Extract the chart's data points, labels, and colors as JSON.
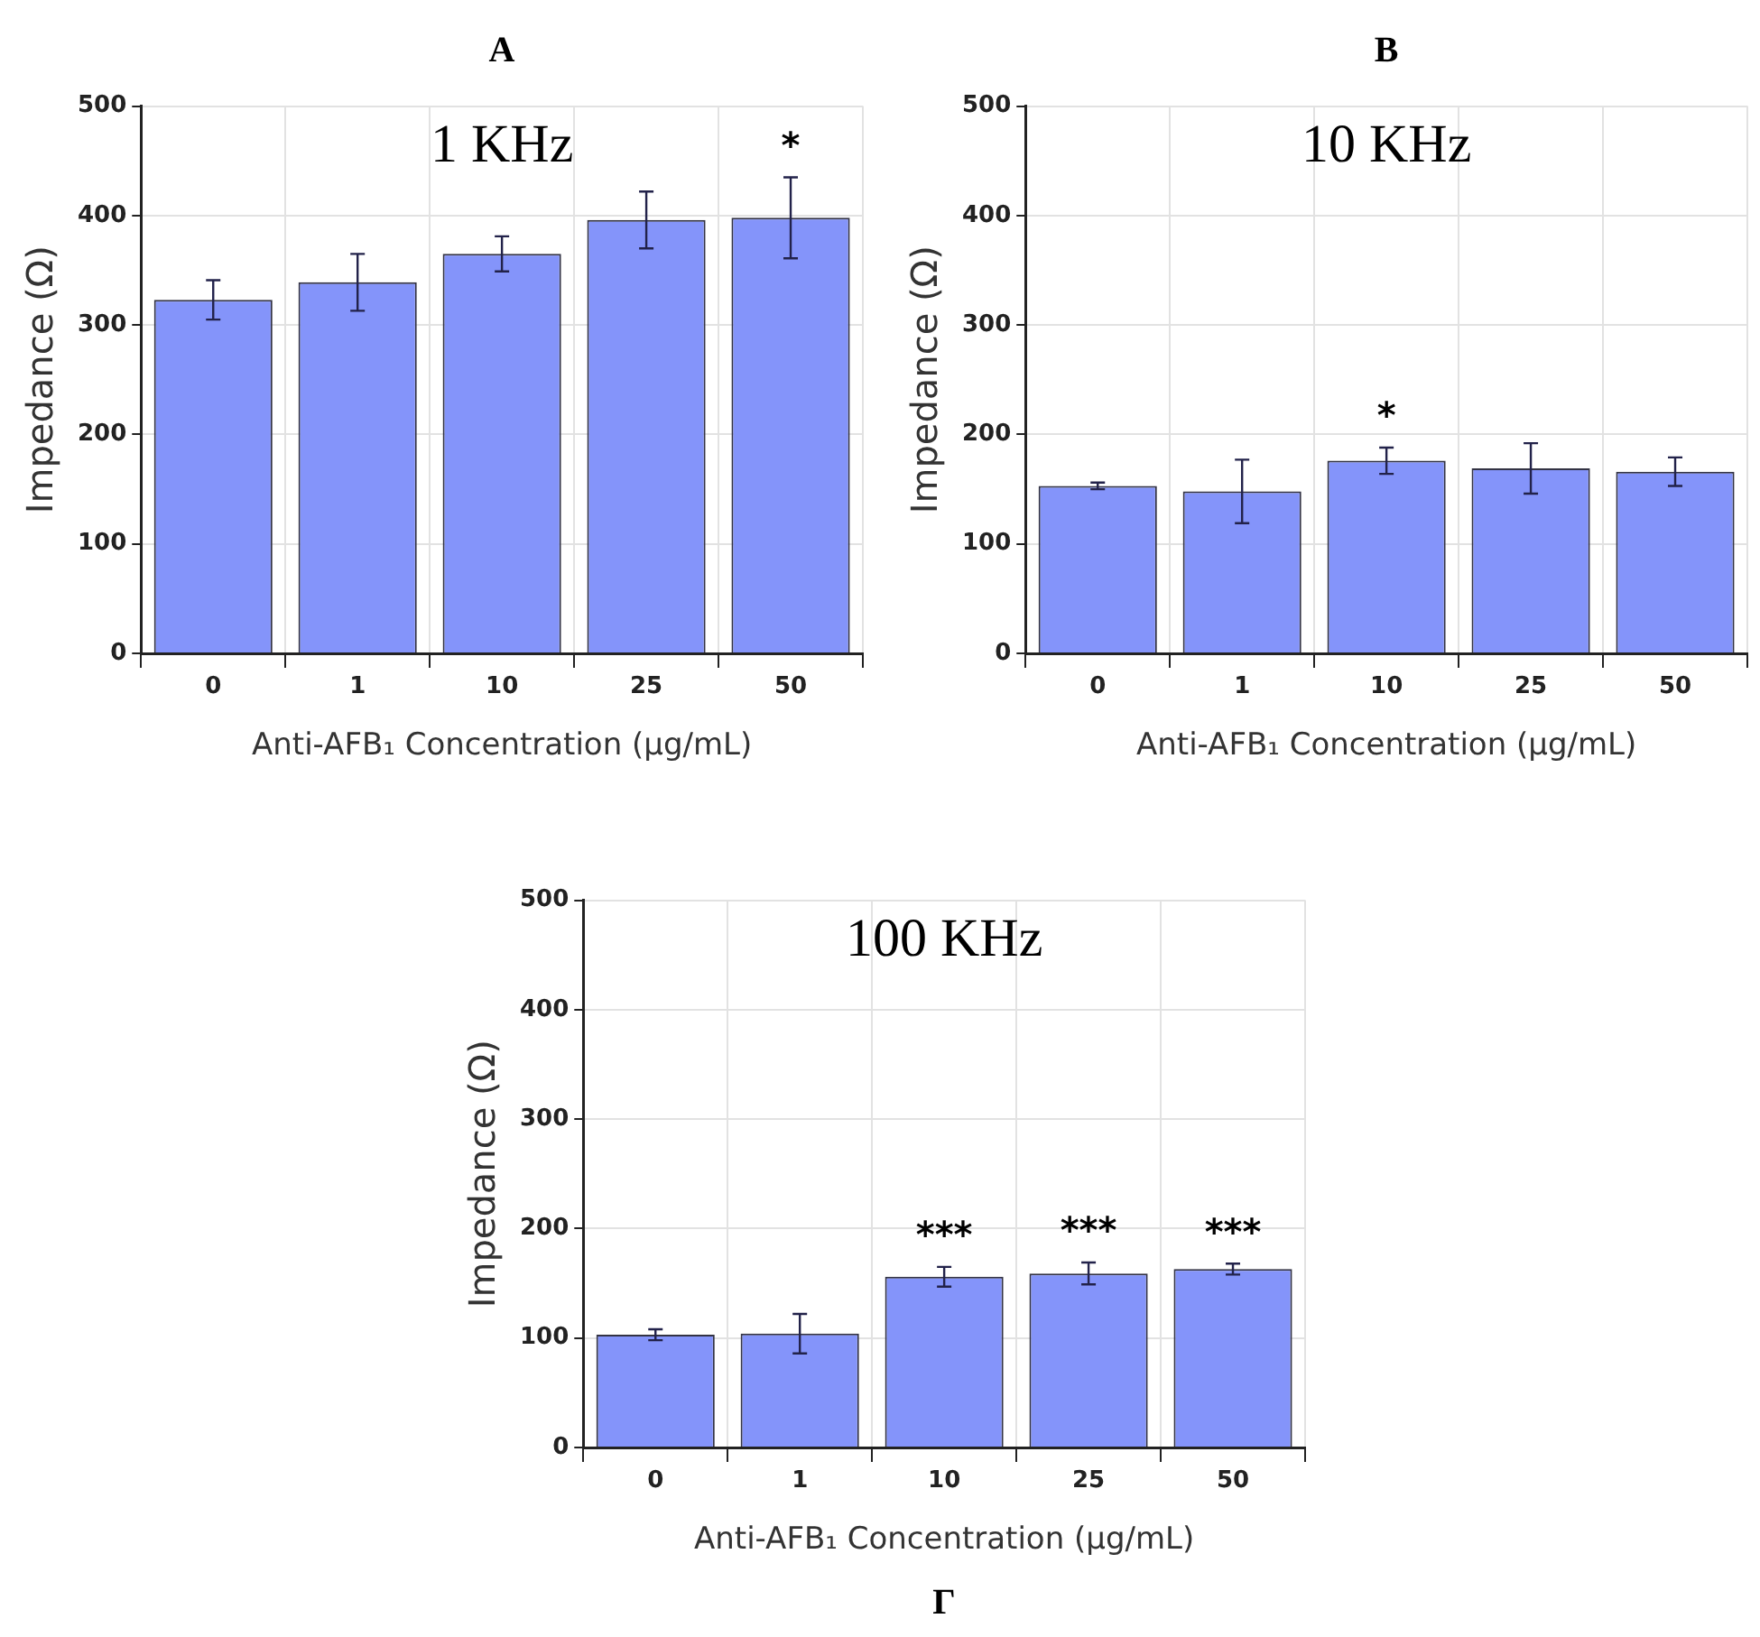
{
  "chart_data": [
    {
      "type": "bar",
      "title": "A",
      "annotations": [
        "1 KHz",
        {
          "text": "*",
          "x": "50",
          "y": 398
        }
      ],
      "categories": [
        "0",
        "1",
        "10",
        "25",
        "50"
      ],
      "values": [
        323,
        339,
        365,
        396,
        398
      ],
      "errors": [
        18,
        26,
        16,
        26,
        37
      ],
      "color": "#8494fa",
      "xlabel": "Anti-AFB₁ Concentration (µg/mL)",
      "ylabel": "Impedance (Ω)",
      "ylim": [
        0,
        500
      ],
      "yticks": [
        0,
        100,
        200,
        300,
        400,
        500
      ],
      "grid": true
    },
    {
      "type": "bar",
      "title": "B",
      "annotations": [
        "10 KHz",
        {
          "text": "*",
          "x": "10",
          "y": 176
        }
      ],
      "categories": [
        "0",
        "1",
        "10",
        "25",
        "50"
      ],
      "values": [
        153,
        148,
        176,
        169,
        166
      ],
      "errors": [
        3,
        29,
        12,
        23,
        13
      ],
      "color": "#8494fa",
      "xlabel": "Anti-AFB₁ Concentration (µg/mL)",
      "ylabel": "Impedance (Ω)",
      "ylim": [
        0,
        500
      ],
      "yticks": [
        0,
        100,
        200,
        300,
        400,
        500
      ],
      "grid": true
    },
    {
      "type": "bar",
      "title": "Г",
      "annotations": [
        "100 KHz",
        {
          "text": "***",
          "x": "10",
          "y": 156
        },
        {
          "text": "***",
          "x": "25",
          "y": 159
        },
        {
          "text": "***",
          "x": "50",
          "y": 163
        }
      ],
      "categories": [
        "0",
        "1",
        "10",
        "25",
        "50"
      ],
      "values": [
        103,
        104,
        156,
        159,
        163
      ],
      "errors": [
        5,
        18,
        9,
        10,
        5
      ],
      "color": "#8494fa",
      "xlabel": "Anti-AFB₁ Concentration (µg/mL)",
      "ylabel": "Impedance (Ω)",
      "ylim": [
        0,
        500
      ],
      "yticks": [
        0,
        100,
        200,
        300,
        400,
        500
      ],
      "grid": true
    }
  ]
}
